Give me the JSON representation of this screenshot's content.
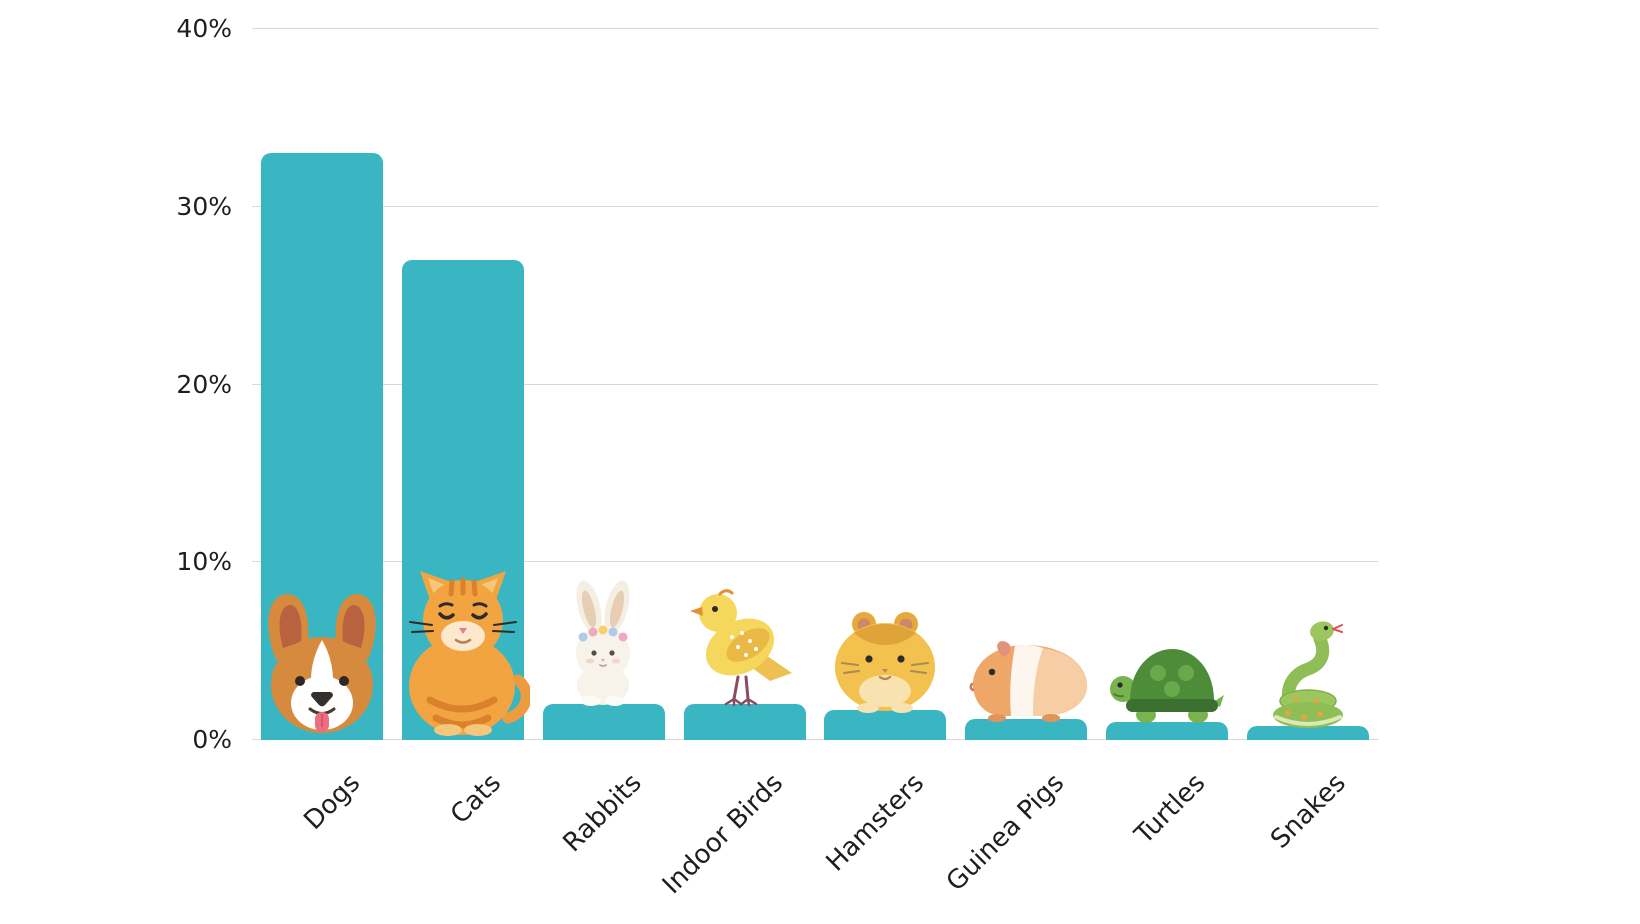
{
  "chart_data": {
    "type": "bar",
    "title": "",
    "xlabel": "",
    "ylabel": "",
    "categories": [
      "Dogs",
      "Cats",
      "Rabbits",
      "Indoor Birds",
      "Hamsters",
      "Guinea Pigs",
      "Turtles",
      "Snakes"
    ],
    "values": [
      33,
      27,
      2,
      2,
      1.7,
      1.2,
      1.0,
      0.8
    ],
    "icons": [
      "dog-icon",
      "cat-icon",
      "rabbit-icon",
      "bird-icon",
      "hamster-icon",
      "guinea-pig-icon",
      "turtle-icon",
      "snake-icon"
    ],
    "ylim": [
      0,
      40
    ],
    "yticks": [
      0,
      10,
      20,
      30,
      40
    ],
    "ytick_labels": [
      "0%",
      "10%",
      "20%",
      "30%",
      "40%"
    ],
    "grid": true,
    "legend": false,
    "bar_color": "#3ab6c3",
    "grid_color": "#d9d9d9",
    "text_color": "#1e1e1e",
    "background": "#ffffff"
  }
}
